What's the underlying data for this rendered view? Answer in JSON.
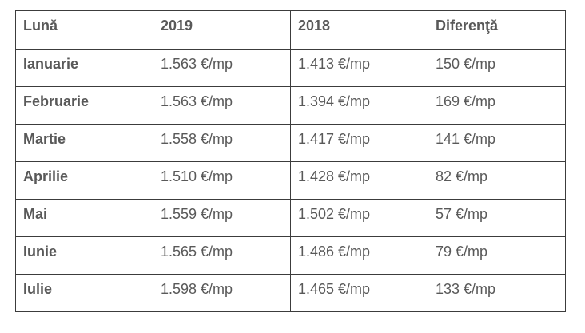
{
  "table": {
    "headers": [
      "Lună",
      "2019",
      "2018",
      "Diferenţă"
    ],
    "rows": [
      [
        "Ianuarie",
        "1.563 €/mp",
        "1.413 €/mp",
        "150 €/mp"
      ],
      [
        "Februarie",
        "1.563 €/mp",
        "1.394 €/mp",
        "169 €/mp"
      ],
      [
        "Martie",
        "1.558 €/mp",
        "1.417 €/mp",
        "141 €/mp"
      ],
      [
        "Aprilie",
        "1.510 €/mp",
        "1.428 €/mp",
        "82 €/mp"
      ],
      [
        "Mai",
        "1.559 €/mp",
        "1.502 €/mp",
        "57 €/mp"
      ],
      [
        "Iunie",
        "1.565 €/mp",
        "1.486 €/mp",
        "79 €/mp"
      ],
      [
        "Iulie",
        "1.598 €/mp",
        "1.465 €/mp",
        "133 €/mp"
      ]
    ]
  }
}
